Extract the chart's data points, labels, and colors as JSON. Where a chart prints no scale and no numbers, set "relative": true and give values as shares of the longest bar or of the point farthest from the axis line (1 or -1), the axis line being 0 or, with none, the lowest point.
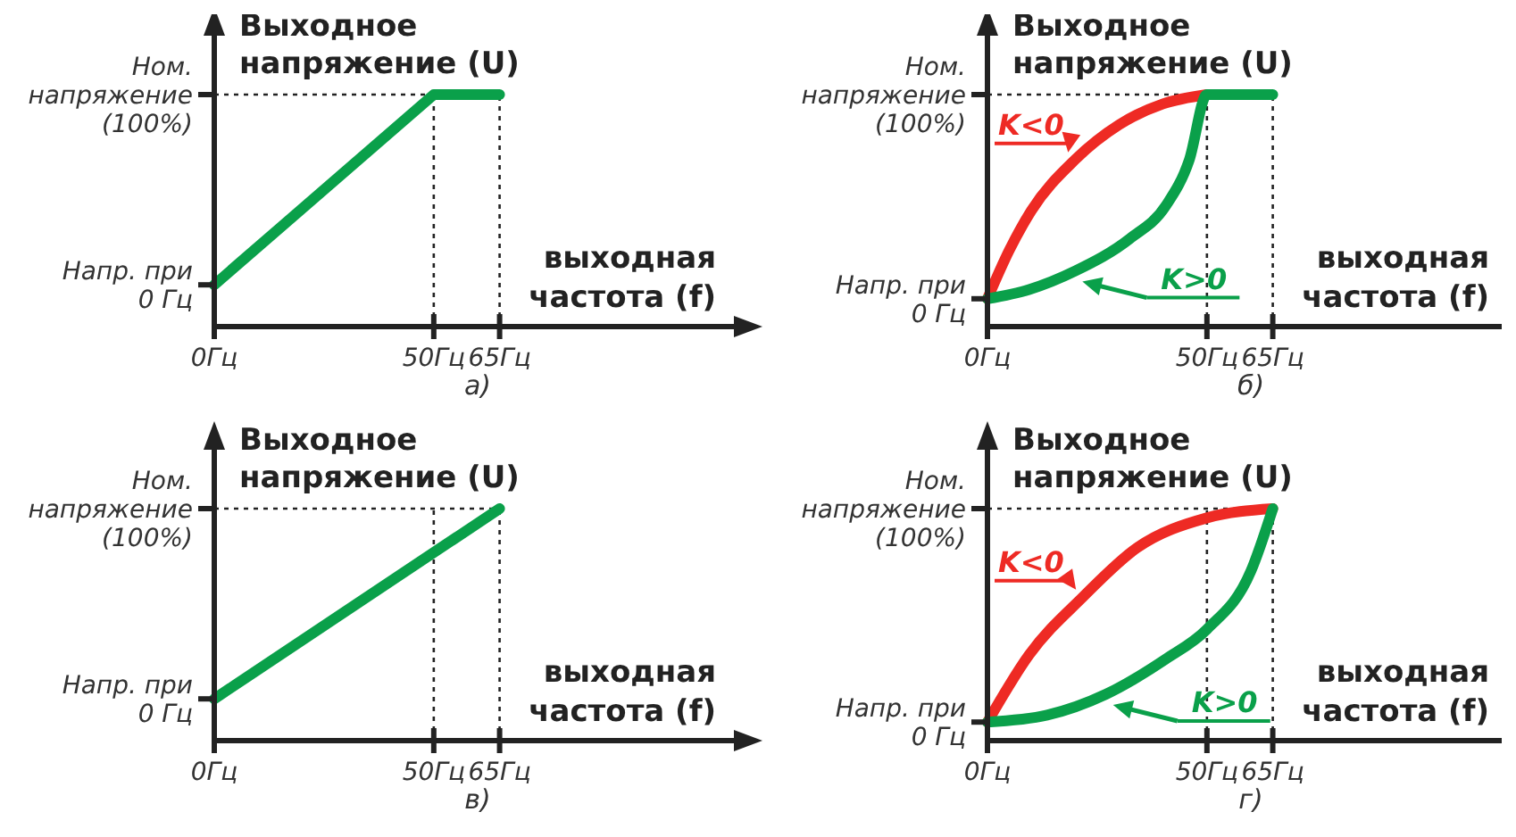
{
  "chart_data": [
    {
      "type": "line",
      "title": "а)",
      "xlabel": "выходная\nчастота (f)",
      "ylabel": "Выходное\nнапряжение (U)",
      "relative": true,
      "xlim": [
        0,
        120
      ],
      "xticks": [
        {
          "value": 0,
          "label": "0Гц"
        },
        {
          "value": 50,
          "label": "50Гц"
        },
        {
          "value": 65,
          "label": "65Гц"
        }
      ],
      "annotations": [
        "Напр. при\n0 Гц"
      ],
      "ref_lines": [
        {
          "axis": "x",
          "value": 50,
          "line_style": "dotted"
        },
        {
          "axis": "x",
          "value": 65,
          "line_style": "dotted"
        },
        {
          "axis": "y",
          "value": 1,
          "line_style": "dotted",
          "label": "Ном.\nнапряжение\n(100%)"
        }
      ],
      "line_style": "solid",
      "series": [
        {
          "color": "#0aa04a",
          "x": [
            0,
            50,
            65
          ],
          "values": [
            0.18,
            1,
            1
          ]
        }
      ]
    },
    {
      "type": "line",
      "title": "б)",
      "xlabel": "выходная\nчастота (f)",
      "ylabel": "Выходное\nнапряжение (U)",
      "relative": true,
      "xlim": [
        0,
        120
      ],
      "xticks": [
        {
          "value": 0,
          "label": "0Гц"
        },
        {
          "value": 50,
          "label": "50Гц"
        },
        {
          "value": 65,
          "label": "65Гц"
        }
      ],
      "annotations": [
        "Напр. при\n0 Гц"
      ],
      "ref_lines": [
        {
          "axis": "x",
          "value": 50,
          "line_style": "dotted"
        },
        {
          "axis": "x",
          "value": 65,
          "line_style": "dotted"
        },
        {
          "axis": "y",
          "value": 1,
          "line_style": "dotted",
          "label": "Ном.\nнапряжение\n(100%)"
        }
      ],
      "line_style": "solid",
      "series": [
        {
          "name": "K<0",
          "color": "#ee2a24",
          "x": [
            0,
            5,
            10,
            20,
            30,
            40,
            50
          ],
          "values": [
            0.12,
            0.33,
            0.5,
            0.72,
            0.87,
            0.96,
            1
          ]
        },
        {
          "name": "K>0",
          "color": "#0aa04a",
          "x": [
            0,
            9.5,
            20,
            32.5,
            40.6,
            46,
            50,
            65
          ],
          "values": [
            0.12,
            0.16,
            0.24,
            0.38,
            0.52,
            0.72,
            1,
            1
          ]
        }
      ]
    },
    {
      "type": "line",
      "title": "в)",
      "xlabel": "выходная\nчастота (f)",
      "ylabel": "Выходное\nнапряжение (U)",
      "relative": true,
      "xlim": [
        0,
        120
      ],
      "xticks": [
        {
          "value": 0,
          "label": "0Гц"
        },
        {
          "value": 50,
          "label": "50Гц"
        },
        {
          "value": 65,
          "label": "65Гц"
        }
      ],
      "annotations": [
        "Напр. при\n0 Гц"
      ],
      "ref_lines": [
        {
          "axis": "x",
          "value": 50,
          "line_style": "dotted"
        },
        {
          "axis": "x",
          "value": 65,
          "line_style": "dotted"
        },
        {
          "axis": "y",
          "value": 1,
          "line_style": "dotted",
          "label": "Ном.\nнапряжение\n(100%)"
        }
      ],
      "line_style": "solid",
      "series": [
        {
          "color": "#0aa04a",
          "x": [
            0,
            65
          ],
          "values": [
            0.18,
            1
          ]
        }
      ]
    },
    {
      "type": "line",
      "title": "г)",
      "xlabel": "выходная\nчастота (f)",
      "ylabel": "Выходное\nнапряжение (U)",
      "relative": true,
      "xlim": [
        0,
        120
      ],
      "xticks": [
        {
          "value": 0,
          "label": "0Гц"
        },
        {
          "value": 50,
          "label": "50Гц"
        },
        {
          "value": 65,
          "label": "65Гц"
        }
      ],
      "annotations": [
        "Напр. при\n0 Гц"
      ],
      "ref_lines": [
        {
          "axis": "x",
          "value": 50,
          "line_style": "dotted"
        },
        {
          "axis": "x",
          "value": 65,
          "line_style": "dotted"
        },
        {
          "axis": "y",
          "value": 1,
          "line_style": "dotted",
          "label": "Ном.\nнапряжение\n(100%)"
        }
      ],
      "line_style": "solid",
      "series": [
        {
          "name": "K<0",
          "color": "#ee2a24",
          "x": [
            0,
            9.5,
            21.8,
            34,
            50,
            65
          ],
          "values": [
            0.08,
            0.37,
            0.62,
            0.83,
            0.96,
            1
          ]
        },
        {
          "name": "K>0",
          "color": "#0aa04a",
          "x": [
            0,
            13.6,
            27,
            40.5,
            50,
            60,
            65
          ],
          "values": [
            0.08,
            0.11,
            0.2,
            0.35,
            0.48,
            0.73,
            1
          ]
        }
      ]
    }
  ]
}
